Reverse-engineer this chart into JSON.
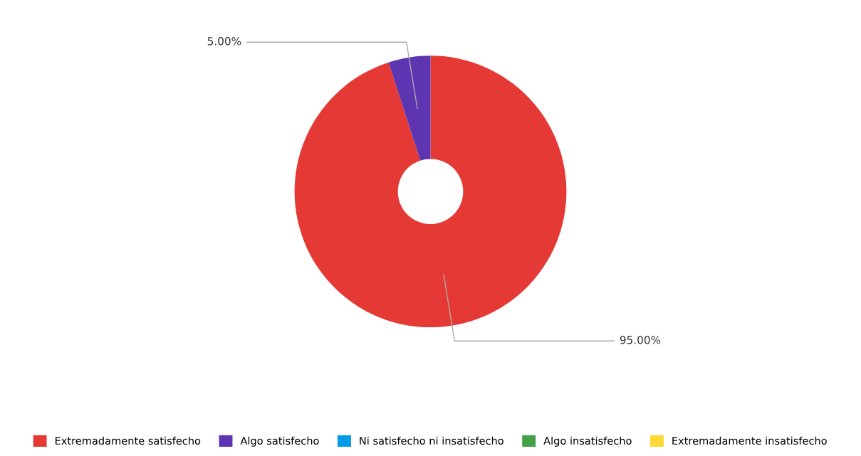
{
  "chart_data": {
    "type": "donut",
    "categories": [
      "Extremadamente satisfecho",
      "Algo satisfecho",
      "Ni satisfecho ni insatisfecho",
      "Algo insatisfecho",
      "Extremadamente insatisfecho"
    ],
    "values": [
      95,
      5,
      0,
      0,
      0
    ],
    "colors": [
      "#e53935",
      "#5e35b1",
      "#039be5",
      "#43a047",
      "#fdd835"
    ],
    "value_labels": [
      "95.00%",
      "5.00%",
      null,
      null,
      null
    ],
    "legend": "bottom"
  }
}
